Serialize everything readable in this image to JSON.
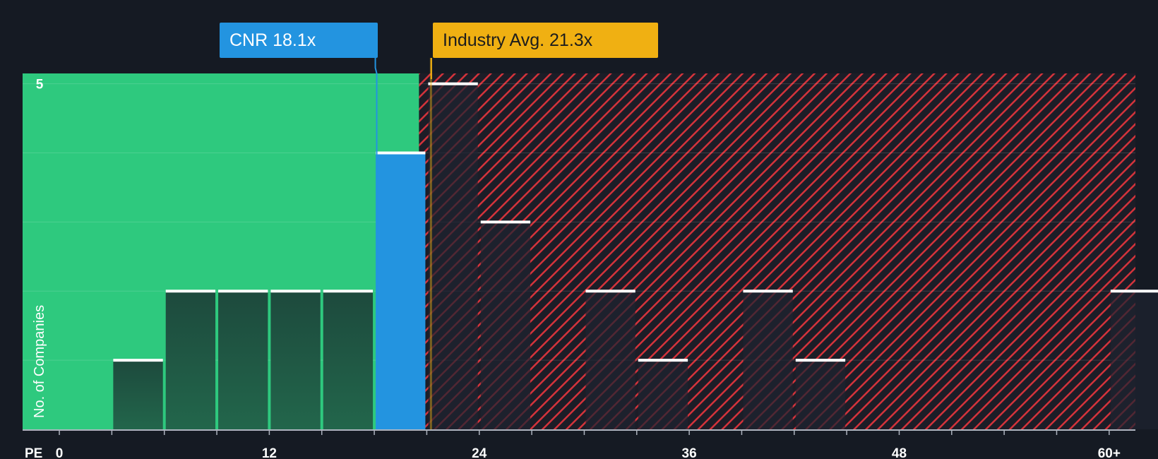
{
  "chart_data": {
    "type": "bar",
    "title": "",
    "xlabel": "PE",
    "ylabel": "No. of Companies",
    "x_ticks": [
      {
        "value": 0,
        "label": "0"
      },
      {
        "value": 12,
        "label": "12"
      },
      {
        "value": 24,
        "label": "24"
      },
      {
        "value": 36,
        "label": "36"
      },
      {
        "value": 48,
        "label": "48"
      },
      {
        "value": 60,
        "label": "60+"
      }
    ],
    "y_ticks": [
      {
        "value": 5,
        "label": "5"
      }
    ],
    "xlim": [
      -2.1,
      61.5
    ],
    "ylim": [
      0,
      5.15
    ],
    "bin_width": 3,
    "bins": [
      {
        "start": 3,
        "count": 1,
        "highlight": false
      },
      {
        "start": 6,
        "count": 2,
        "highlight": false
      },
      {
        "start": 9,
        "count": 2,
        "highlight": false
      },
      {
        "start": 12,
        "count": 2,
        "highlight": false
      },
      {
        "start": 15,
        "count": 2,
        "highlight": false
      },
      {
        "start": 18,
        "count": 4,
        "highlight": true
      },
      {
        "start": 21,
        "count": 5,
        "highlight": false
      },
      {
        "start": 24,
        "count": 3,
        "highlight": false
      },
      {
        "start": 30,
        "count": 2,
        "highlight": false
      },
      {
        "start": 33,
        "count": 1,
        "highlight": false
      },
      {
        "start": 39,
        "count": 2,
        "highlight": false
      },
      {
        "start": 42,
        "count": 1,
        "highlight": false
      },
      {
        "start": 60,
        "count": 2,
        "highlight": false
      }
    ],
    "company": {
      "name": "CNR",
      "pe": 18.1,
      "label": "CNR 18.1x"
    },
    "industry_avg": {
      "pe": 21.3,
      "label": "Industry Avg. 21.3x"
    },
    "colors": {
      "background": "#151a23",
      "undervalued_zone": "#2ec97e",
      "overvalued_hatch": "#d4333b",
      "company_bar": "#2394e0",
      "industry_marker": "#f0b012",
      "bar_cap": "#ffffff"
    }
  }
}
